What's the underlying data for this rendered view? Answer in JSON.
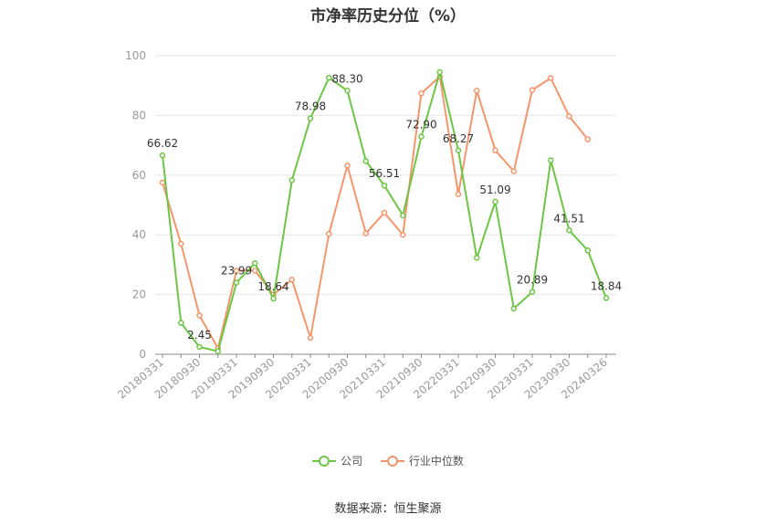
{
  "title": "市净率历史分位（%）",
  "source": "数据来源：恒生聚源",
  "colors": {
    "company": "#6cc644",
    "industry": "#f5956b",
    "grid": "#e6e6e6",
    "axis": "#999999"
  },
  "chart_data": {
    "type": "line",
    "title": "市净率历史分位（%）",
    "xlabel": "",
    "ylabel": "",
    "ylim": [
      0,
      100
    ],
    "yticks": [
      0,
      20,
      40,
      60,
      80,
      100
    ],
    "grid": true,
    "legend": "bottom",
    "x": [
      "20180331",
      "20180630",
      "20180930",
      "20181231",
      "20190331",
      "20190630",
      "20190930",
      "20191231",
      "20200331",
      "20200630",
      "20200930",
      "20201231",
      "20210331",
      "20210630",
      "20210930",
      "20211231",
      "20220331",
      "20220630",
      "20220930",
      "20221231",
      "20230331",
      "20230630",
      "20230930",
      "20231231",
      "20240326"
    ],
    "xtick_labels": [
      "20180331",
      "20180930",
      "20190331",
      "20190930",
      "20200331",
      "20200930",
      "20210331",
      "20210930",
      "20220331",
      "20220930",
      "20230331",
      "20230930",
      "20240326"
    ],
    "series": [
      {
        "name": "公司",
        "color": "#6cc644",
        "values": [
          66.62,
          10.5,
          2.45,
          1.0,
          23.99,
          30.5,
          18.64,
          58.3,
          78.98,
          92.6,
          88.3,
          64.7,
          56.51,
          46.5,
          72.9,
          94.5,
          68.27,
          32.3,
          51.09,
          15.3,
          20.89,
          65.0,
          41.51,
          34.8,
          18.84
        ]
      },
      {
        "name": "行业中位数",
        "color": "#f5956b",
        "values": [
          57.5,
          37.0,
          13.0,
          2.0,
          28.0,
          28.0,
          20.0,
          25.0,
          5.5,
          40.3,
          63.2,
          40.5,
          47.4,
          40.0,
          87.4,
          93.0,
          53.6,
          88.3,
          68.3,
          61.3,
          88.5,
          92.5,
          79.7,
          72.0,
          null
        ]
      }
    ],
    "annotations": [
      {
        "index": 0,
        "text": "66.62"
      },
      {
        "index": 2,
        "text": "2.45"
      },
      {
        "index": 4,
        "text": "23.99"
      },
      {
        "index": 6,
        "text": "18.64"
      },
      {
        "index": 8,
        "text": "78.98"
      },
      {
        "index": 10,
        "text": "88.30"
      },
      {
        "index": 12,
        "text": "56.51"
      },
      {
        "index": 14,
        "text": "72.90"
      },
      {
        "index": 16,
        "text": "68.27"
      },
      {
        "index": 18,
        "text": "51.09"
      },
      {
        "index": 20,
        "text": "20.89"
      },
      {
        "index": 22,
        "text": "41.51"
      },
      {
        "index": 24,
        "text": "18.84"
      }
    ]
  }
}
